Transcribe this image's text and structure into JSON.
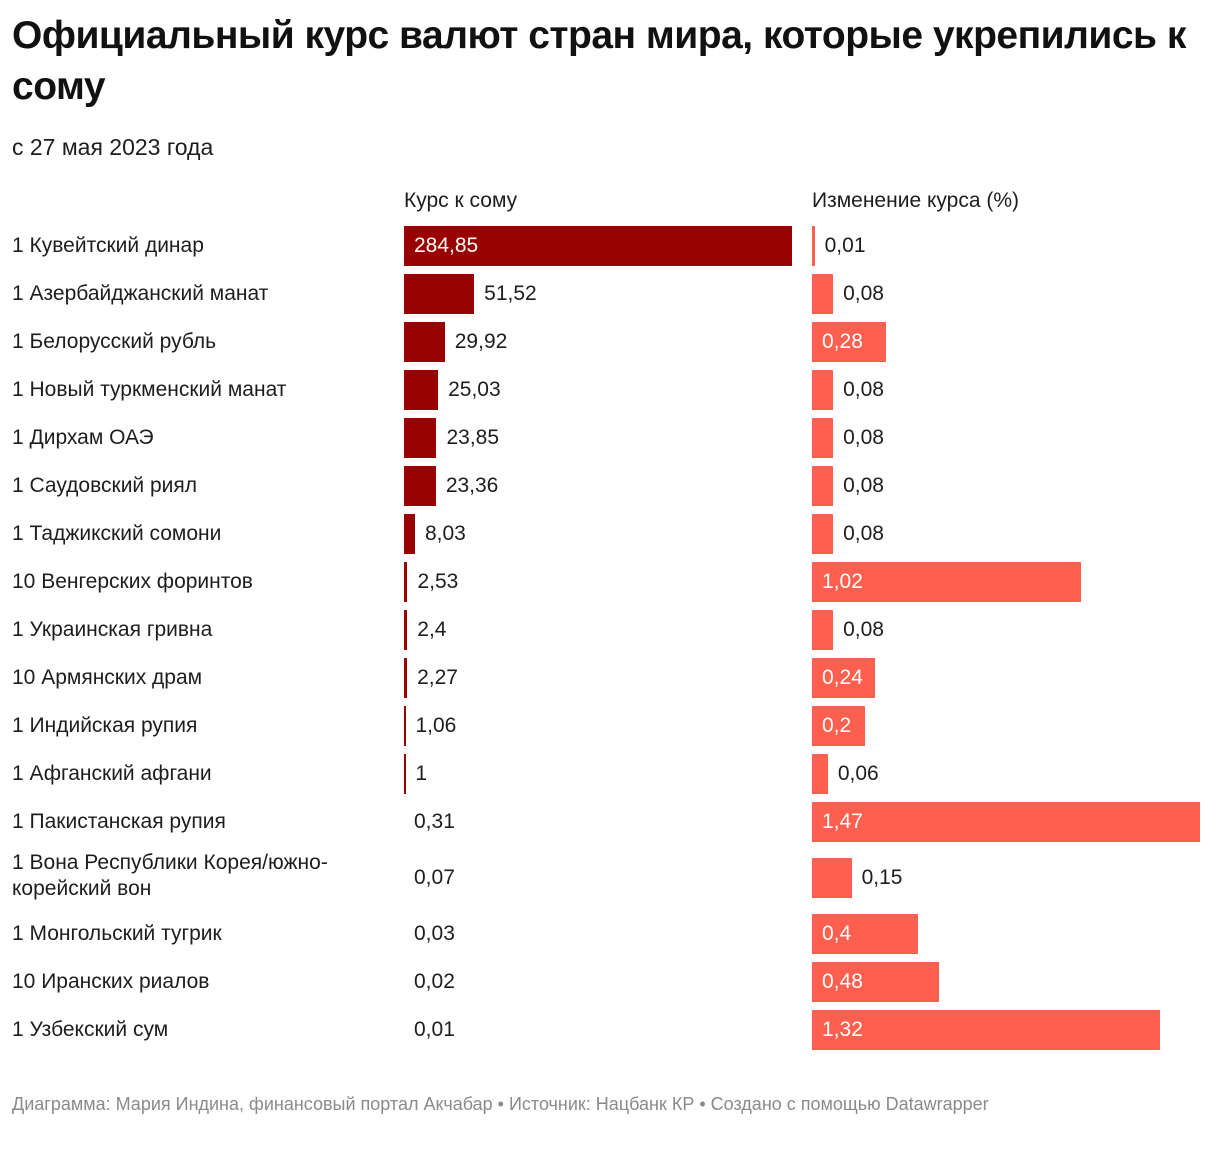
{
  "title": "Официальный курс валют стран мира, которые укрепились к сому",
  "subtitle": "с 27 мая 2023 года",
  "footer": "Диаграмма: Мария Индина, финансовый портал Акчабар • Источник: Нацбанк КР • Создано с помощью Datawrapper",
  "chart_data": {
    "type": "bar",
    "orientation": "horizontal",
    "colors": {
      "rate": "#990000",
      "change": "#ff5f4f",
      "label_dark": "#1d1d1d",
      "label_on_bar": "#ffffff"
    },
    "categories": [
      "1 Кувейтский динар",
      "1 Азербайджанский манат",
      "1 Белорусский рубль",
      "1 Новый туркменский манат",
      "1 Дирхам ОАЭ",
      "1 Саудовский риял",
      "1 Таджикский сомони",
      "10 Венгерских форинтов",
      "1 Украинская гривна",
      "10 Армянских драм",
      "1 Индийская рупия",
      "1 Афганский афгани",
      "1 Пакистанская рупия",
      "1 Вона Республики Корея/южно-корейский вон",
      "1 Монгольский тугрик",
      "10 Иранских риалов",
      "1 Узбекский сум"
    ],
    "series": [
      {
        "name": "Курс к сому",
        "values": [
          284.85,
          51.52,
          29.92,
          25.03,
          23.85,
          23.36,
          8.03,
          2.53,
          2.4,
          2.27,
          1.06,
          1,
          0.31,
          0.07,
          0.03,
          0.02,
          0.01
        ],
        "labels": [
          "284,85",
          "51,52",
          "29,92",
          "25,03",
          "23,85",
          "23,36",
          "8,03",
          "2,53",
          "2,4",
          "2,27",
          "1,06",
          "1",
          "0,31",
          "0,07",
          "0,03",
          "0,02",
          "0,01"
        ]
      },
      {
        "name": "Изменение курса (%)",
        "values": [
          0.01,
          0.08,
          0.28,
          0.08,
          0.08,
          0.08,
          0.08,
          1.02,
          0.08,
          0.24,
          0.2,
          0.06,
          1.47,
          0.15,
          0.4,
          0.48,
          1.32
        ],
        "labels": [
          "0,01",
          "0,08",
          "0,28",
          "0,08",
          "0,08",
          "0,08",
          "0,08",
          "1,02",
          "0,08",
          "0,24",
          "0,2",
          "0,06",
          "1,47",
          "0,15",
          "0,4",
          "0,48",
          "1,32"
        ]
      }
    ]
  }
}
